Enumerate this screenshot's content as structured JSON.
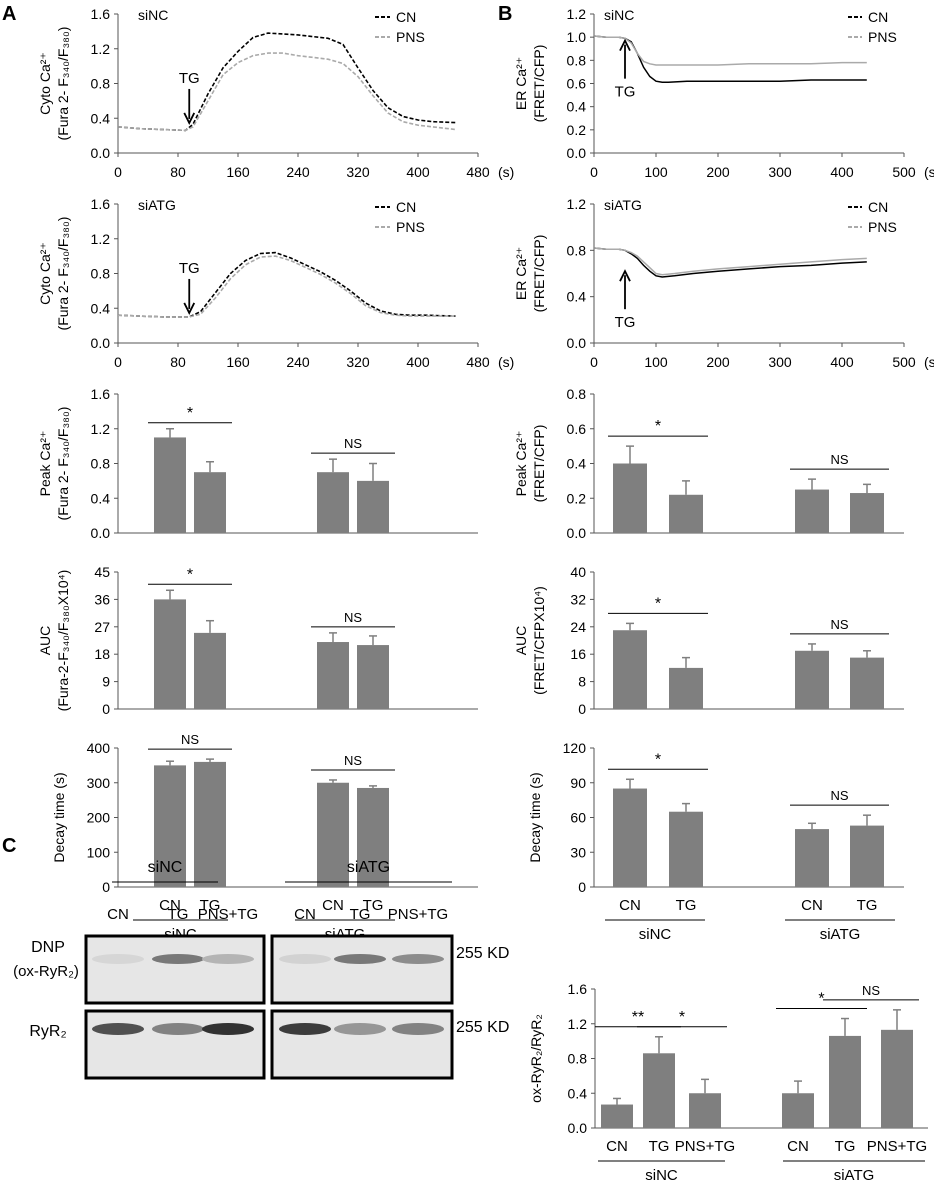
{
  "panel_labels": [
    "A",
    "B",
    "C"
  ],
  "chart_data": [
    {
      "id": "A1",
      "type": "line",
      "panel": "A",
      "group_label": "siNC",
      "ylabel": "Cyto Ca²⁺",
      "ylabel2": "(Fura 2- F₃₄₀/F₃₈₀)",
      "xunit": "(s)",
      "xlim": [
        0,
        480
      ],
      "ylim": [
        0,
        1.6
      ],
      "xticks": [
        0,
        80,
        160,
        240,
        320,
        400,
        480
      ],
      "yticks": [
        0,
        0.4,
        0.8,
        1.2,
        1.6
      ],
      "ydec": 1,
      "marker": {
        "label": "TG",
        "x": 95,
        "y": 0.3,
        "dir": "down"
      },
      "series": [
        {
          "name": "CN",
          "color": "#000000",
          "dash": true,
          "x": [
            0,
            30,
            60,
            90,
            100,
            120,
            140,
            160,
            180,
            200,
            220,
            240,
            260,
            280,
            300,
            320,
            340,
            360,
            380,
            400,
            420,
            450
          ],
          "y": [
            0.3,
            0.28,
            0.27,
            0.26,
            0.33,
            0.68,
            0.98,
            1.17,
            1.33,
            1.38,
            1.37,
            1.36,
            1.34,
            1.32,
            1.25,
            0.98,
            0.72,
            0.52,
            0.42,
            0.38,
            0.36,
            0.35
          ]
        },
        {
          "name": "PNS",
          "color": "#aaaaaa",
          "dash": true,
          "x": [
            0,
            30,
            60,
            90,
            100,
            120,
            140,
            160,
            180,
            200,
            220,
            240,
            260,
            280,
            300,
            320,
            340,
            360,
            380,
            400,
            420,
            450
          ],
          "y": [
            0.3,
            0.28,
            0.27,
            0.26,
            0.3,
            0.6,
            0.9,
            1.04,
            1.12,
            1.15,
            1.15,
            1.12,
            1.1,
            1.08,
            1.03,
            0.88,
            0.66,
            0.46,
            0.36,
            0.32,
            0.3,
            0.27
          ]
        }
      ]
    },
    {
      "id": "A2",
      "type": "line",
      "panel": "A",
      "group_label": "siATG",
      "ylabel": "Cyto Ca²⁺",
      "ylabel2": "(Fura 2- F₃₄₀/F₃₈₀)",
      "xunit": "(s)",
      "xlim": [
        0,
        480
      ],
      "ylim": [
        0,
        1.6
      ],
      "xticks": [
        0,
        80,
        160,
        240,
        320,
        400,
        480
      ],
      "yticks": [
        0,
        0.4,
        0.8,
        1.2,
        1.6
      ],
      "ydec": 1,
      "marker": {
        "label": "TG",
        "x": 95,
        "y": 0.3,
        "dir": "down"
      },
      "series": [
        {
          "name": "CN",
          "color": "#000000",
          "dash": true,
          "x": [
            0,
            30,
            60,
            95,
            110,
            130,
            150,
            170,
            190,
            210,
            230,
            250,
            270,
            290,
            310,
            330,
            350,
            370,
            390,
            410,
            450
          ],
          "y": [
            0.32,
            0.31,
            0.3,
            0.3,
            0.36,
            0.58,
            0.8,
            0.95,
            1.03,
            1.04,
            0.98,
            0.9,
            0.82,
            0.72,
            0.6,
            0.46,
            0.37,
            0.33,
            0.32,
            0.32,
            0.31
          ]
        },
        {
          "name": "PNS",
          "color": "#aaaaaa",
          "dash": true,
          "x": [
            0,
            30,
            60,
            95,
            110,
            130,
            150,
            170,
            190,
            210,
            230,
            250,
            270,
            290,
            310,
            330,
            350,
            370,
            390,
            410,
            450
          ],
          "y": [
            0.32,
            0.31,
            0.3,
            0.3,
            0.33,
            0.52,
            0.74,
            0.9,
            0.99,
            1.0,
            0.95,
            0.87,
            0.79,
            0.69,
            0.57,
            0.43,
            0.35,
            0.32,
            0.31,
            0.31,
            0.31
          ]
        }
      ]
    },
    {
      "id": "B1",
      "type": "line",
      "panel": "B",
      "group_label": "siNC",
      "ylabel": "ER Ca²⁺",
      "ylabel2": "(FRET/CFP)",
      "xunit": "(s)",
      "xlim": [
        0,
        500
      ],
      "ylim": [
        0,
        1.2
      ],
      "xticks": [
        0,
        100,
        200,
        300,
        400,
        500
      ],
      "yticks": [
        0,
        0.2,
        0.4,
        0.6,
        0.8,
        1.0,
        1.2
      ],
      "ydec": 1,
      "marker": {
        "label": "TG",
        "x": 50,
        "y": 0.97,
        "dir": "up"
      },
      "series": [
        {
          "name": "CN",
          "color": "#000000",
          "dash": false,
          "x": [
            0,
            20,
            40,
            50,
            60,
            70,
            80,
            90,
            100,
            110,
            120,
            150,
            200,
            250,
            300,
            350,
            400,
            440
          ],
          "y": [
            1.01,
            1.0,
            1.0,
            0.99,
            0.96,
            0.86,
            0.74,
            0.66,
            0.62,
            0.61,
            0.61,
            0.62,
            0.62,
            0.62,
            0.62,
            0.63,
            0.63,
            0.63
          ]
        },
        {
          "name": "PNS",
          "color": "#aaaaaa",
          "dash": false,
          "x": [
            0,
            20,
            40,
            50,
            60,
            70,
            80,
            90,
            100,
            110,
            120,
            150,
            200,
            250,
            300,
            350,
            400,
            440
          ],
          "y": [
            1.01,
            1.0,
            1.0,
            0.99,
            0.95,
            0.86,
            0.79,
            0.77,
            0.76,
            0.76,
            0.76,
            0.76,
            0.76,
            0.77,
            0.77,
            0.77,
            0.78,
            0.78
          ]
        }
      ]
    },
    {
      "id": "B2",
      "type": "line",
      "panel": "B",
      "group_label": "siATG",
      "ylabel": "ER Ca²⁺",
      "ylabel2": "(FRET/CFP)",
      "xunit": "(s)",
      "xlim": [
        0,
        500
      ],
      "ylim": [
        0,
        1.2
      ],
      "xticks": [
        0,
        100,
        200,
        300,
        400,
        500
      ],
      "yticks": [
        0,
        0.4,
        0.8,
        1.2
      ],
      "ydec": 1,
      "marker": {
        "label": "TG",
        "x": 50,
        "y": 0.62,
        "dir": "up"
      },
      "series": [
        {
          "name": "CN",
          "color": "#000000",
          "dash": false,
          "x": [
            0,
            20,
            40,
            50,
            60,
            70,
            80,
            90,
            100,
            110,
            130,
            160,
            200,
            250,
            300,
            350,
            400,
            440
          ],
          "y": [
            0.82,
            0.81,
            0.81,
            0.8,
            0.77,
            0.73,
            0.67,
            0.62,
            0.58,
            0.57,
            0.58,
            0.6,
            0.62,
            0.64,
            0.66,
            0.67,
            0.69,
            0.7
          ]
        },
        {
          "name": "PNS",
          "color": "#aaaaaa",
          "dash": false,
          "x": [
            0,
            20,
            40,
            50,
            60,
            70,
            80,
            90,
            100,
            110,
            130,
            160,
            200,
            250,
            300,
            350,
            400,
            440
          ],
          "y": [
            0.82,
            0.81,
            0.81,
            0.8,
            0.78,
            0.75,
            0.7,
            0.65,
            0.6,
            0.59,
            0.6,
            0.62,
            0.64,
            0.66,
            0.68,
            0.7,
            0.72,
            0.73
          ]
        }
      ]
    },
    {
      "id": "A3",
      "type": "bar",
      "panel": "A",
      "ylabel": "Peak Ca²⁺",
      "ylabel2": "(Fura 2- F₃₄₀/F₃₈₀)",
      "ylim": [
        0,
        1.6
      ],
      "yticks": [
        0,
        0.4,
        0.8,
        1.2,
        1.6
      ],
      "ydec": 1,
      "values": [
        1.1,
        0.7,
        0.7,
        0.6
      ],
      "errors": [
        0.1,
        0.12,
        0.15,
        0.2
      ],
      "sig": [
        {
          "a": 0,
          "b": 1,
          "label": "*"
        },
        {
          "a": 2,
          "b": 3,
          "label": "NS"
        }
      ]
    },
    {
      "id": "A4",
      "type": "bar",
      "panel": "A",
      "ylabel": "AUC",
      "ylabel2": "(Fura-2-F₃₄₀/F₃₈₀X10⁴)",
      "ylim": [
        0,
        45
      ],
      "yticks": [
        0,
        9,
        18,
        27,
        36,
        45
      ],
      "ydec": 0,
      "values": [
        36,
        25,
        22,
        21
      ],
      "errors": [
        3,
        4,
        3,
        3
      ],
      "sig": [
        {
          "a": 0,
          "b": 1,
          "label": "*"
        },
        {
          "a": 2,
          "b": 3,
          "label": "NS"
        }
      ]
    },
    {
      "id": "A5",
      "type": "bar",
      "panel": "A",
      "ylabel": "Decay time (s)",
      "ylabel2": "",
      "ylim": [
        0,
        400
      ],
      "yticks": [
        0,
        100,
        200,
        300,
        400
      ],
      "ydec": 0,
      "values": [
        350,
        360,
        300,
        285
      ],
      "errors": [
        12,
        8,
        8,
        6
      ],
      "sig": [
        {
          "a": 0,
          "b": 1,
          "label": "NS"
        },
        {
          "a": 2,
          "b": 3,
          "label": "NS"
        }
      ],
      "categories": [
        "CN",
        "TG",
        "CN",
        "TG"
      ],
      "groups": [
        "siNC",
        "siATG"
      ]
    },
    {
      "id": "B3",
      "type": "bar",
      "panel": "B",
      "ylabel": "Peak Ca²⁺",
      "ylabel2": "(FRET/CFP)",
      "ylim": [
        0,
        0.8
      ],
      "yticks": [
        0,
        0.2,
        0.4,
        0.6,
        0.8
      ],
      "ydec": 1,
      "values": [
        0.4,
        0.22,
        0.25,
        0.23
      ],
      "errors": [
        0.1,
        0.08,
        0.06,
        0.05
      ],
      "sig": [
        {
          "a": 0,
          "b": 1,
          "label": "*"
        },
        {
          "a": 2,
          "b": 3,
          "label": "NS"
        }
      ]
    },
    {
      "id": "B4",
      "type": "bar",
      "panel": "B",
      "ylabel": "AUC",
      "ylabel2": "(FRET/CFPX10⁴)",
      "ylim": [
        0,
        40
      ],
      "yticks": [
        0,
        8,
        16,
        24,
        32,
        40
      ],
      "ydec": 0,
      "values": [
        23,
        12,
        17,
        15
      ],
      "errors": [
        2,
        3,
        2,
        2
      ],
      "sig": [
        {
          "a": 0,
          "b": 1,
          "label": "*"
        },
        {
          "a": 2,
          "b": 3,
          "label": "NS"
        }
      ]
    },
    {
      "id": "B5",
      "type": "bar",
      "panel": "B",
      "ylabel": "Decay time (s)",
      "ylabel2": "",
      "ylim": [
        0,
        120
      ],
      "yticks": [
        0,
        30,
        60,
        90,
        120
      ],
      "ydec": 0,
      "values": [
        85,
        65,
        50,
        53
      ],
      "errors": [
        8,
        7,
        5,
        9
      ],
      "sig": [
        {
          "a": 0,
          "b": 1,
          "label": "*"
        },
        {
          "a": 2,
          "b": 3,
          "label": "NS"
        }
      ],
      "categories": [
        "CN",
        "TG",
        "CN",
        "TG"
      ],
      "groups": [
        "siNC",
        "siATG"
      ]
    },
    {
      "id": "C1",
      "type": "bar",
      "panel": "C",
      "ylabel": "ox-RyR₂/RyR₂",
      "ylabel2": "",
      "ylim": [
        0,
        1.6
      ],
      "yticks": [
        0,
        0.4,
        0.8,
        1.2,
        1.6
      ],
      "ydec": 1,
      "values": [
        0.27,
        0.86,
        0.4,
        0.4,
        1.06,
        1.13
      ],
      "errors": [
        0.07,
        0.19,
        0.16,
        0.14,
        0.2,
        0.23
      ],
      "sig": [
        {
          "a": 0,
          "b": 1,
          "label": "**"
        },
        {
          "a": 1,
          "b": 2,
          "label": "*"
        },
        {
          "a": 3,
          "b": 4,
          "label": "*"
        },
        {
          "a": 4,
          "b": 5,
          "label": "NS"
        }
      ],
      "categories": [
        "CN",
        "TG",
        "PNS+TG",
        "CN",
        "TG",
        "PNS+TG"
      ],
      "groups": [
        "siNC",
        "siATG"
      ]
    }
  ],
  "blot": {
    "groups": [
      "siNC",
      "siATG"
    ],
    "lanes": [
      "CN",
      "TG",
      "PNS+TG"
    ],
    "rows": [
      {
        "label": "DNP",
        "label2": "(ox-RyR₂)",
        "kd": "255 KD",
        "intensity": [
          0.08,
          0.55,
          0.25,
          0.1,
          0.55,
          0.45
        ]
      },
      {
        "label": "RyR₂",
        "label2": "",
        "kd": "255 KD",
        "intensity": [
          0.75,
          0.5,
          0.9,
          0.85,
          0.4,
          0.5
        ]
      }
    ]
  }
}
